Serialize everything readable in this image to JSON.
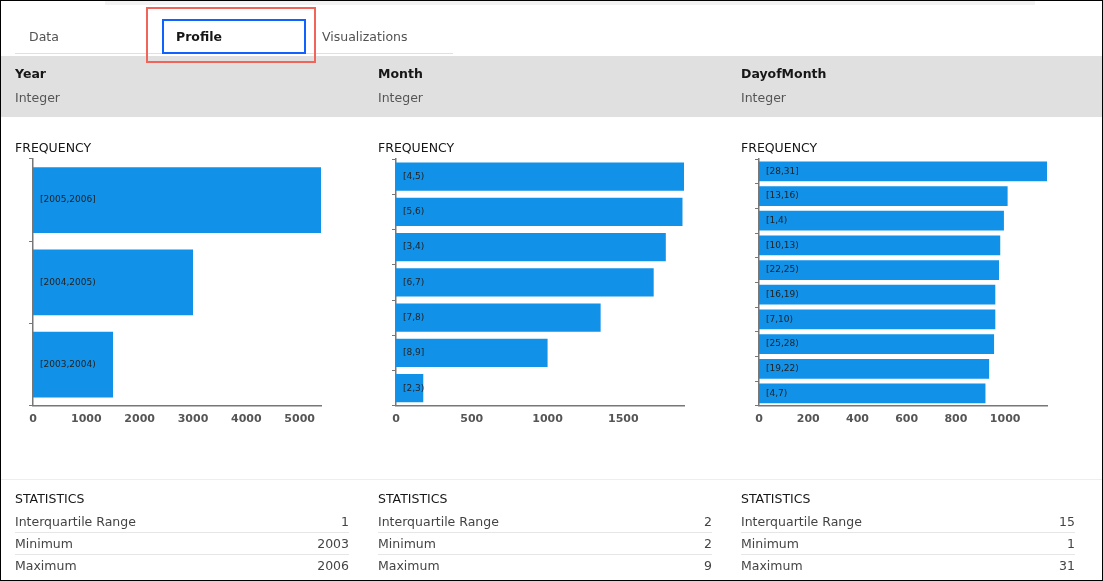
{
  "chart_data": [
    {
      "type": "other",
      "annotations": [
        "Data",
        "Profile",
        "Visualizations"
      ]
    },
    {
      "type": "bar",
      "orientation": "horizontal",
      "title": "Year",
      "subtitle": "Integer",
      "categories": [
        "[2005,2006]",
        "[2004,2005)",
        "[2003,2004)"
      ],
      "values": [
        5400,
        3000,
        1500
      ],
      "color": "#1192e8",
      "xlim": [
        0,
        5400
      ],
      "xticks": [
        0,
        1000,
        2000,
        3000,
        4000,
        5000
      ],
      "annotations": [
        "FREQUENCY",
        "STATISTICS",
        "Interquartile Range",
        "1",
        "Minimum",
        "2003",
        "Maximum",
        "2006"
      ]
    },
    {
      "type": "bar",
      "orientation": "horizontal",
      "title": "Month",
      "subtitle": "Integer",
      "categories": [
        "[4,5)",
        "[5,6)",
        "[3,4)",
        "[6,7)",
        "[7,8)",
        "[8,9]",
        "[2,3)"
      ],
      "values": [
        1900,
        1890,
        1780,
        1700,
        1350,
        1000,
        180
      ],
      "color": "#1192e8",
      "xlim": [
        0,
        1900
      ],
      "xticks": [
        0,
        500,
        1000,
        1500
      ],
      "annotations": [
        "FREQUENCY",
        "STATISTICS",
        "Interquartile Range",
        "2",
        "Minimum",
        "2",
        "Maximum",
        "9"
      ]
    },
    {
      "type": "bar",
      "orientation": "horizontal",
      "title": "DayofMonth",
      "subtitle": "Integer",
      "categories": [
        "[28,31]",
        "[13,16)",
        "[1,4)",
        "[10,13)",
        "[22,25)",
        "[16,19)",
        "[7,10)",
        "[25,28)",
        "[19,22)",
        "[4,7)"
      ],
      "values": [
        1170,
        1010,
        995,
        980,
        975,
        960,
        960,
        955,
        935,
        920
      ],
      "color": "#1192e8",
      "xlim": [
        0,
        1170
      ],
      "xticks": [
        0,
        200,
        400,
        600,
        800,
        1000
      ],
      "annotations": [
        "FREQUENCY",
        "STATISTICS",
        "Interquartile Range",
        "15",
        "Minimum",
        "1",
        "Maximum",
        "31"
      ]
    }
  ]
}
